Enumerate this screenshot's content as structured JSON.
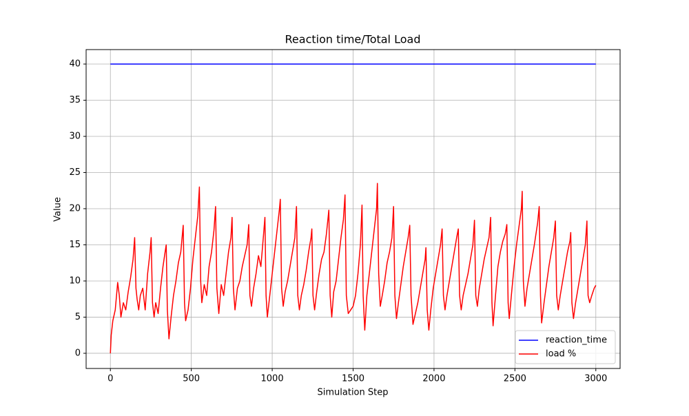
{
  "chart_data": {
    "type": "line",
    "title": "Reaction time/Total Load",
    "xlabel": "Simulation Step",
    "ylabel": "Value",
    "xlim": [
      -150,
      3150
    ],
    "ylim": [
      -2.1,
      42
    ],
    "xticks": [
      0,
      500,
      1000,
      1500,
      2000,
      2500,
      3000
    ],
    "yticks": [
      0,
      5,
      10,
      15,
      20,
      25,
      30,
      35,
      40
    ],
    "grid": true,
    "legend": "lower right",
    "series": [
      {
        "name": "reaction_time",
        "color": "#0000ff",
        "x": [
          0,
          3000
        ],
        "values": [
          40,
          40
        ]
      },
      {
        "name": "load %",
        "color": "#ff0000",
        "x": [
          0,
          5,
          15,
          30,
          45,
          55,
          65,
          80,
          95,
          110,
          125,
          140,
          150,
          158,
          165,
          175,
          185,
          200,
          215,
          230,
          245,
          252,
          260,
          270,
          280,
          295,
          310,
          325,
          338,
          345,
          352,
          362,
          375,
          390,
          405,
          420,
          435,
          450,
          458,
          465,
          480,
          495,
          510,
          525,
          540,
          550,
          558,
          565,
          580,
          595,
          610,
          625,
          640,
          650,
          658,
          670,
          685,
          700,
          715,
          730,
          745,
          752,
          760,
          770,
          785,
          800,
          815,
          830,
          845,
          855,
          862,
          872,
          885,
          900,
          915,
          930,
          945,
          955,
          962,
          970,
          985,
          1000,
          1015,
          1030,
          1045,
          1050,
          1058,
          1068,
          1080,
          1095,
          1110,
          1125,
          1140,
          1150,
          1158,
          1168,
          1180,
          1195,
          1210,
          1225,
          1240,
          1245,
          1252,
          1262,
          1275,
          1290,
          1305,
          1320,
          1335,
          1350,
          1358,
          1368,
          1380,
          1395,
          1410,
          1425,
          1440,
          1450,
          1458,
          1470,
          1485,
          1500,
          1515,
          1530,
          1545,
          1555,
          1562,
          1572,
          1585,
          1600,
          1615,
          1630,
          1645,
          1650,
          1658,
          1668,
          1680,
          1695,
          1710,
          1725,
          1740,
          1750,
          1758,
          1768,
          1780,
          1795,
          1810,
          1825,
          1840,
          1850,
          1858,
          1870,
          1885,
          1900,
          1915,
          1930,
          1945,
          1950,
          1958,
          1968,
          1980,
          1995,
          2010,
          2025,
          2040,
          2050,
          2058,
          2068,
          2080,
          2095,
          2110,
          2125,
          2140,
          2150,
          2158,
          2168,
          2180,
          2195,
          2210,
          2225,
          2240,
          2250,
          2258,
          2268,
          2280,
          2295,
          2310,
          2325,
          2340,
          2350,
          2358,
          2365,
          2380,
          2395,
          2410,
          2425,
          2440,
          2450,
          2458,
          2465,
          2480,
          2495,
          2510,
          2525,
          2540,
          2545,
          2552,
          2562,
          2575,
          2590,
          2605,
          2620,
          2640,
          2650,
          2658,
          2665,
          2680,
          2695,
          2710,
          2725,
          2740,
          2750,
          2758,
          2768,
          2780,
          2795,
          2810,
          2825,
          2840,
          2845,
          2852,
          2862,
          2875,
          2890,
          2905,
          2920,
          2935,
          2945,
          2952,
          2962,
          2975,
          2990,
          3000
        ],
        "values": [
          0,
          2.5,
          4.5,
          6,
          9.8,
          8,
          5,
          7,
          6,
          8.5,
          10.5,
          13,
          16,
          9,
          7.5,
          6,
          8,
          9,
          6,
          11,
          14,
          16,
          7,
          5,
          7,
          5.5,
          9,
          12,
          14,
          15,
          6,
          2,
          5,
          8,
          10,
          12.5,
          14,
          17.7,
          7,
          4.5,
          6,
          9,
          13,
          16,
          19,
          23,
          10,
          7,
          9.5,
          8,
          12,
          14,
          17,
          20.3,
          9,
          5.5,
          9.5,
          8,
          11,
          14,
          16,
          18.8,
          9,
          6,
          9,
          10,
          12,
          13.5,
          15,
          17.8,
          8,
          6.5,
          9,
          11,
          13.5,
          12,
          16,
          18.8,
          8,
          5,
          8,
          11,
          14,
          17,
          20,
          21.3,
          9,
          6.5,
          8.5,
          10,
          12,
          14,
          16,
          20.3,
          8,
          6,
          8,
          9.5,
          11.5,
          14,
          16,
          17.2,
          8,
          6,
          8.5,
          11,
          13,
          14,
          16.5,
          19.8,
          8,
          5,
          8.5,
          10,
          13,
          16,
          18.5,
          21.9,
          8,
          5.5,
          6,
          6.5,
          8,
          11,
          15,
          20.5,
          8,
          3.2,
          8,
          11,
          14,
          17,
          20,
          23.5,
          11,
          6.5,
          8,
          10,
          12.5,
          14,
          16,
          20.3,
          8,
          4.8,
          7,
          9.5,
          12,
          14,
          16,
          17.7,
          8,
          4,
          5.5,
          7,
          9,
          11,
          13,
          14.6,
          6,
          3.2,
          6,
          9,
          11,
          13,
          15,
          17.2,
          8,
          6,
          8,
          10,
          12,
          14,
          16,
          17.2,
          8,
          6,
          8,
          9.5,
          11,
          13,
          15,
          18.4,
          8,
          6.5,
          9,
          11,
          13,
          14.5,
          16,
          18.8,
          7,
          3.8,
          8,
          12,
          14,
          15.5,
          16.5,
          17.8,
          7,
          4.8,
          8.5,
          12,
          15,
          17.5,
          20,
          22.4,
          10,
          6.5,
          9,
          11,
          13,
          15,
          18,
          20.3,
          8,
          4.2,
          7,
          9.5,
          12,
          14,
          16,
          18.3,
          8,
          6,
          8,
          10,
          12,
          14,
          15.5,
          16.7,
          7,
          4.8,
          7,
          9,
          11,
          13,
          15,
          18.3,
          8,
          7,
          8,
          9,
          9.4
        ]
      }
    ]
  }
}
